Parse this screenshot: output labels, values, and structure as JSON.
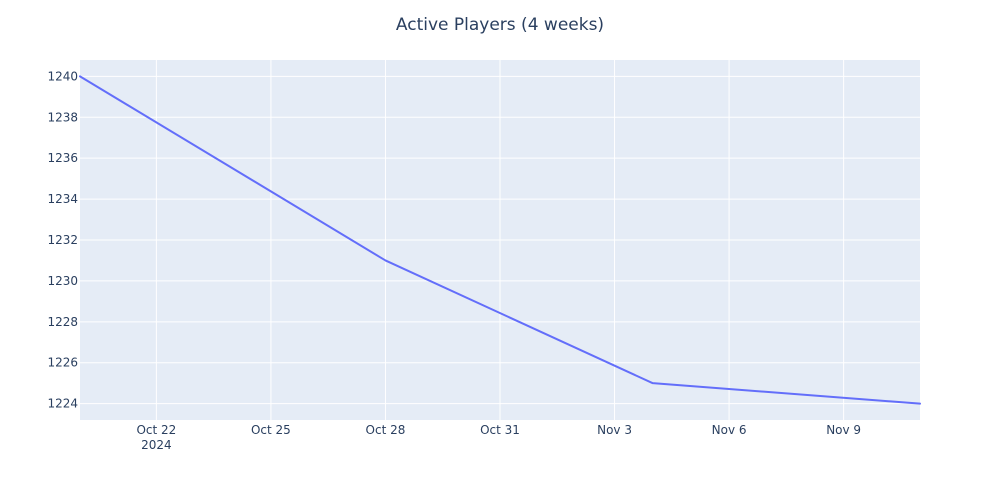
{
  "chart_data": {
    "type": "line",
    "title": "Active Players (4 weeks)",
    "xlabel": "",
    "ylabel": "",
    "x": [
      "2024-10-20",
      "2024-10-28",
      "2024-11-04",
      "2024-11-11"
    ],
    "series": [
      {
        "values": [
          1240,
          1231,
          1225,
          1224
        ]
      }
    ],
    "xlim": [
      "2024-10-20",
      "2024-11-11"
    ],
    "ylim": [
      1223.2,
      1240.8
    ],
    "x_ticks": [
      {
        "date": "2024-10-22",
        "label": "Oct 22",
        "sublabel": "2024"
      },
      {
        "date": "2024-10-25",
        "label": "Oct 25"
      },
      {
        "date": "2024-10-28",
        "label": "Oct 28"
      },
      {
        "date": "2024-10-31",
        "label": "Oct 31"
      },
      {
        "date": "2024-11-03",
        "label": "Nov 3"
      },
      {
        "date": "2024-11-06",
        "label": "Nov 6"
      },
      {
        "date": "2024-11-09",
        "label": "Nov 9"
      }
    ],
    "y_ticks": [
      1224,
      1226,
      1228,
      1230,
      1232,
      1234,
      1236,
      1238,
      1240
    ],
    "grid": true,
    "legend": "none",
    "colors": {
      "line": "#636efa",
      "plot_bg": "#e5ecf6",
      "grid": "#ffffff",
      "text": "#2a3f5f"
    }
  }
}
